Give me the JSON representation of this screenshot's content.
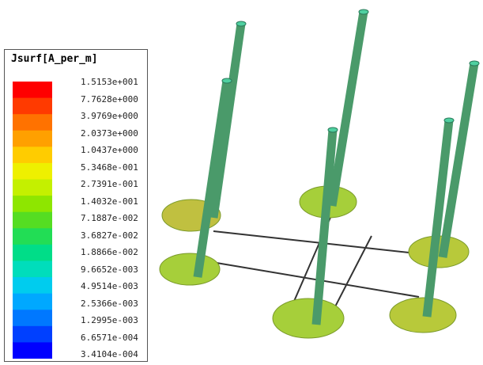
{
  "legend": {
    "title": "Jsurf[A_per_m]",
    "labels": [
      "1.5153e+001",
      "7.7628e+000",
      "3.9769e+000",
      "2.0373e+000",
      "1.0437e+000",
      "5.3468e-001",
      "2.7391e-001",
      "1.4032e-001",
      "7.1887e-002",
      "3.6827e-002",
      "1.8866e-002",
      "9.6652e-003",
      "4.9514e-003",
      "2.5366e-003",
      "1.2995e-003",
      "6.6571e-004",
      "3.4104e-004"
    ],
    "colors": [
      "#ff0000",
      "#ff3a00",
      "#ff7200",
      "#ffa000",
      "#ffcc00",
      "#eef000",
      "#c4f000",
      "#8ee600",
      "#55dd22",
      "#22dd55",
      "#00dd88",
      "#00ddbb",
      "#00ccee",
      "#00a8ff",
      "#0078ff",
      "#0040ff",
      "#0000ff"
    ]
  }
}
